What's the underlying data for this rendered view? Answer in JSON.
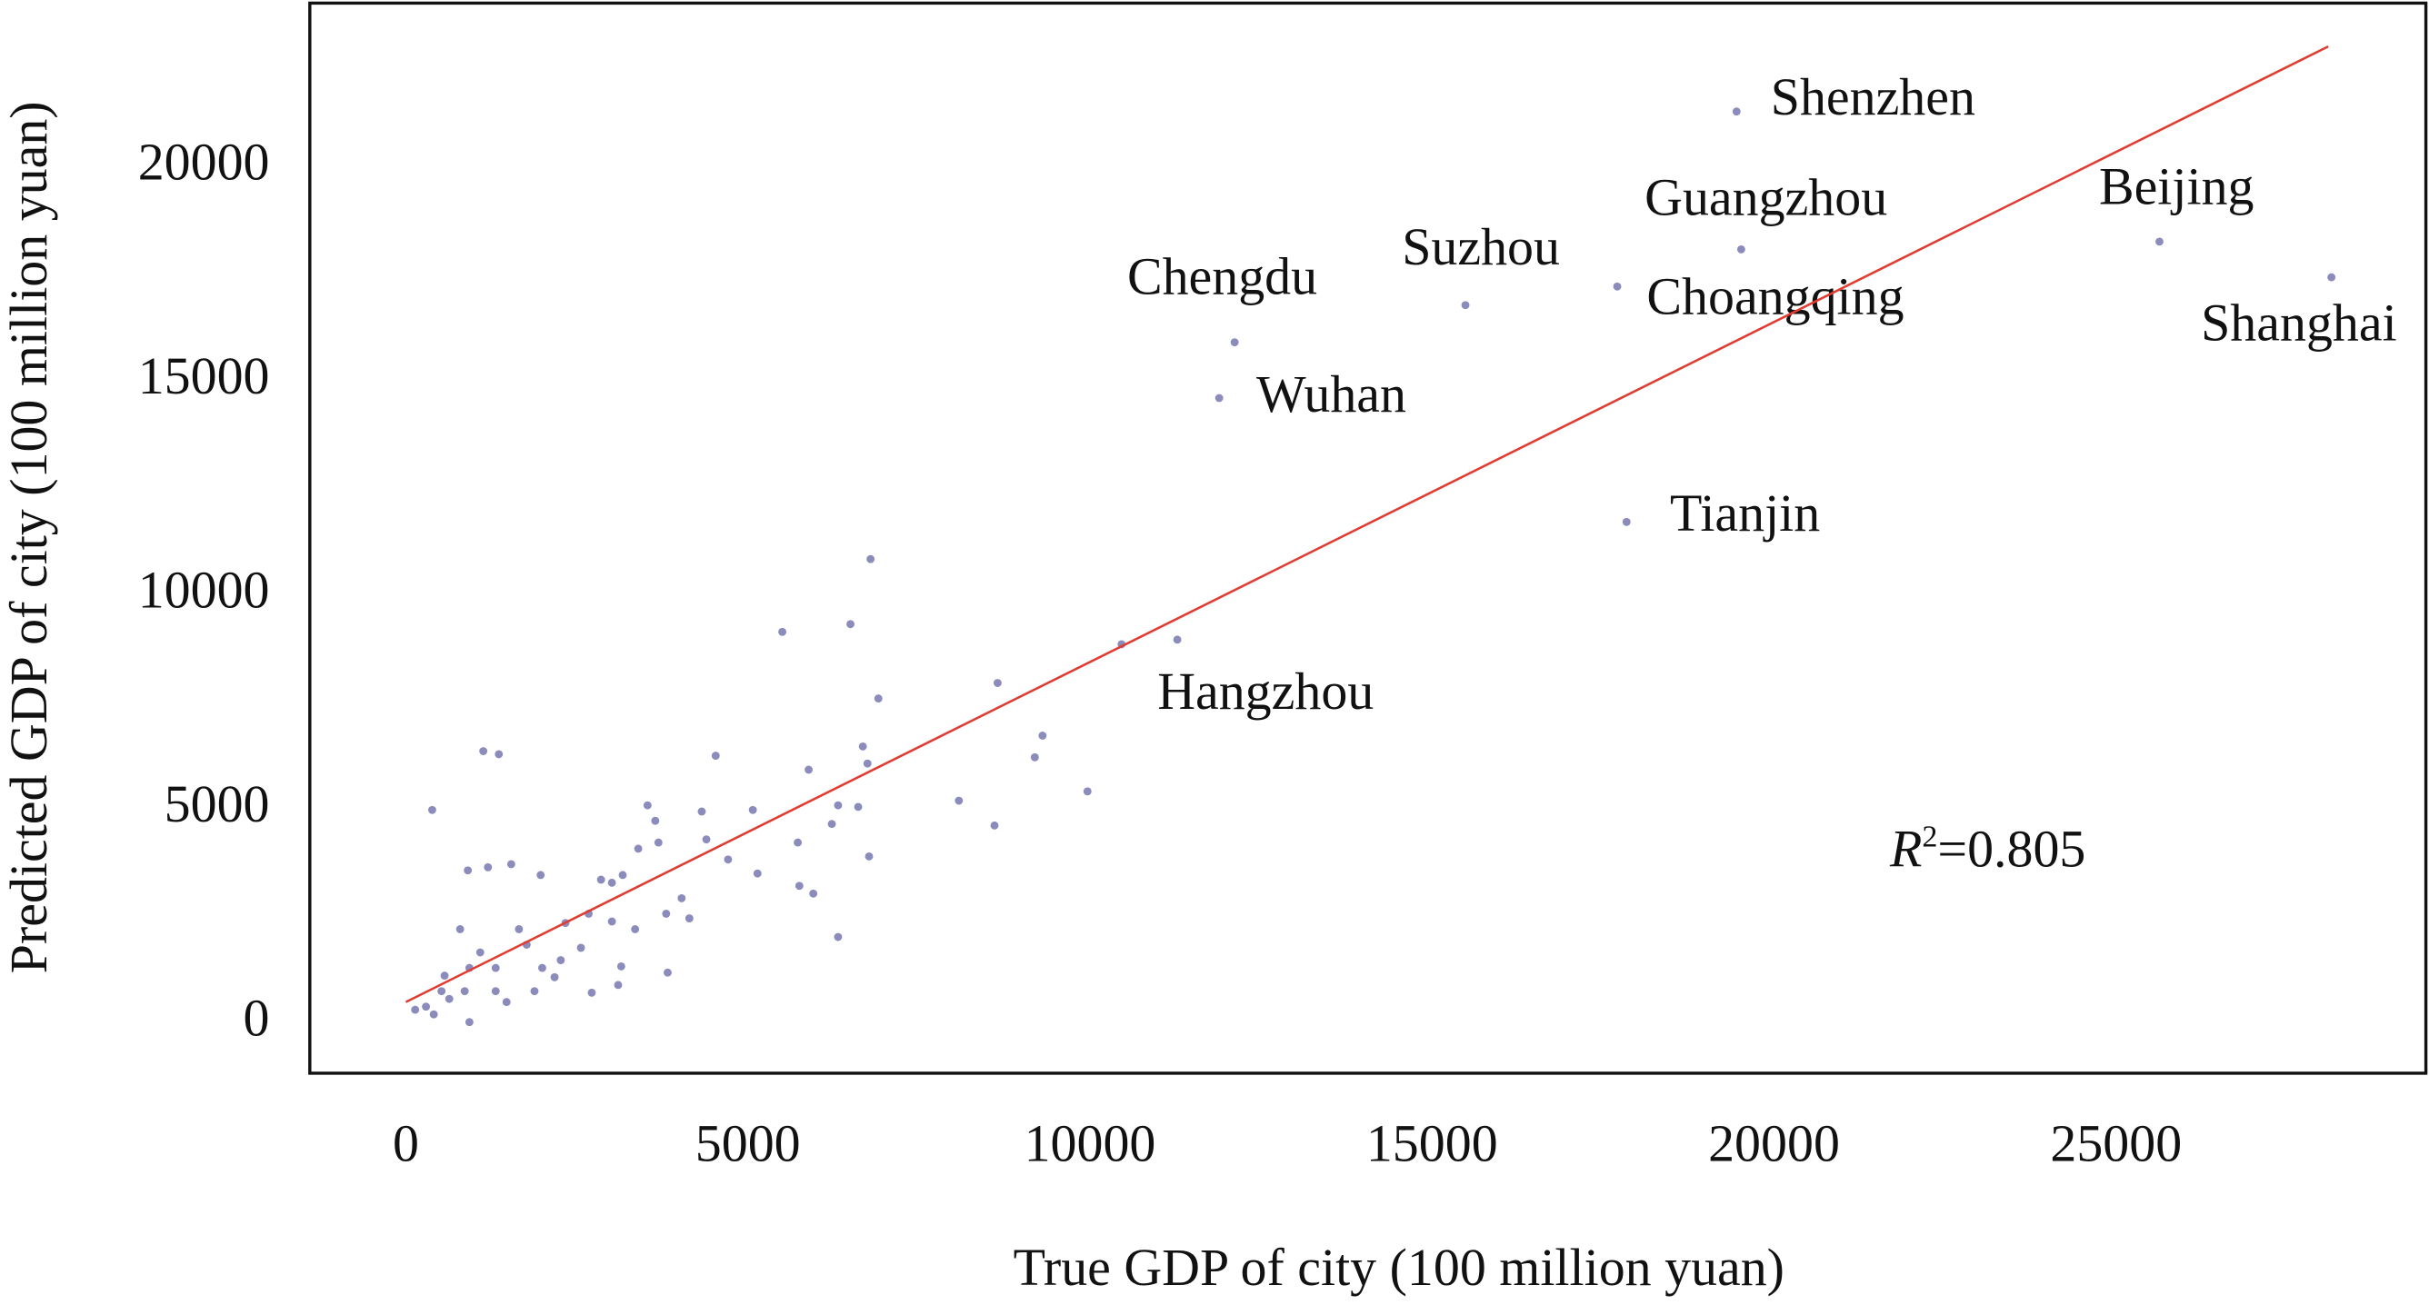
{
  "chart_data": {
    "type": "scatter",
    "xlabel": "True GDP of city (100 million yuan)",
    "ylabel": "Predicted GDP of city (100 million yuan)",
    "xlim": [
      -1404,
      29529
    ],
    "ylim": [
      -1157,
      23834
    ],
    "xticks": [
      0,
      5000,
      10000,
      15000,
      20000,
      25000
    ],
    "yticks": [
      0,
      5000,
      10000,
      15000,
      20000
    ],
    "grid": false,
    "color": "#5a5aa0",
    "point_labels": [
      "Shenzhen",
      "Guangzhou",
      "Beijing",
      "Shanghai",
      "Choangqing",
      "Suzhou",
      "Chengdu",
      "Wuhan",
      "Tianjin",
      "Hangzhou",
      null,
      null,
      null,
      null,
      null,
      null,
      null,
      null,
      null,
      null,
      null,
      null,
      null,
      null,
      null,
      null,
      null,
      null,
      null,
      null,
      null,
      null,
      null,
      null,
      null,
      null,
      null,
      null,
      null,
      null,
      null,
      null,
      null,
      null,
      null,
      null,
      null,
      null,
      null,
      null,
      null,
      null,
      null,
      null,
      null,
      null,
      null,
      null,
      null,
      null,
      null,
      null,
      null,
      null,
      null,
      null,
      null,
      null,
      null,
      null,
      null,
      null,
      null,
      null,
      null,
      null,
      null,
      null,
      null,
      null,
      null,
      null,
      null,
      null
    ],
    "x": [
      19452,
      19520,
      25634,
      28148,
      17708,
      15489,
      12115,
      11889,
      17844,
      11277,
      10462,
      6793,
      5503,
      6499,
      6907,
      8650,
      9307,
      9194,
      9964,
      8084,
      8605,
      6748,
      6680,
      5888,
      6318,
      6227,
      6612,
      6771,
      5729,
      5752,
      5956,
      6318,
      4529,
      5072,
      5140,
      3533,
      3646,
      3692,
      4325,
      4393,
      3827,
      3148,
      3103,
      385,
      1132,
      1359,
      3397,
      3170,
      2853,
      2672,
      1970,
      1540,
      1200,
      906,
      793,
      521,
      929,
      1472,
      2174,
      2717,
      2264,
      1766,
      1313,
      860,
      294,
      136,
      566,
      1087,
      1653,
      2333,
      3012,
      4031,
      3805,
      4144,
      2559,
      1993,
      634,
      408,
      1313,
      929,
      1880,
      3351,
      4710,
      3012
    ],
    "y": [
      21302,
      18083,
      18264,
      17432,
      17215,
      16781,
      15913,
      14611,
      11718,
      8969,
      8861,
      10850,
      9150,
      9331,
      7595,
      7957,
      6727,
      6221,
      5425,
      5208,
      4629,
      6076,
      6474,
      5931,
      5100,
      4665,
      5063,
      3906,
      4231,
      3219,
      3038,
      2025,
      6257,
      4991,
      3508,
      5100,
      4738,
      4231,
      4955,
      4304,
      1193,
      1338,
      904,
      4991,
      6365,
      6293,
      4087,
      3472,
      3363,
      2568,
      3472,
      3725,
      3653,
      3580,
      2206,
      759,
      36,
      506,
      1085,
      723,
      1483,
      1844,
      1302,
      759,
      398,
      326,
      1121,
      1664,
      2206,
      2351,
      2387,
      2929,
      2568,
      2459,
      1772,
      1302,
      579,
      217,
      759,
      1302,
      759,
      2206,
      3834,
      3291
    ],
    "fit_line": {
      "x": [
        0,
        28102
      ],
      "y": [
        506,
        22821
      ],
      "color": "#e03c31"
    },
    "annotation": {
      "symbol": "R",
      "power": "2",
      "text": "=0.805"
    }
  }
}
